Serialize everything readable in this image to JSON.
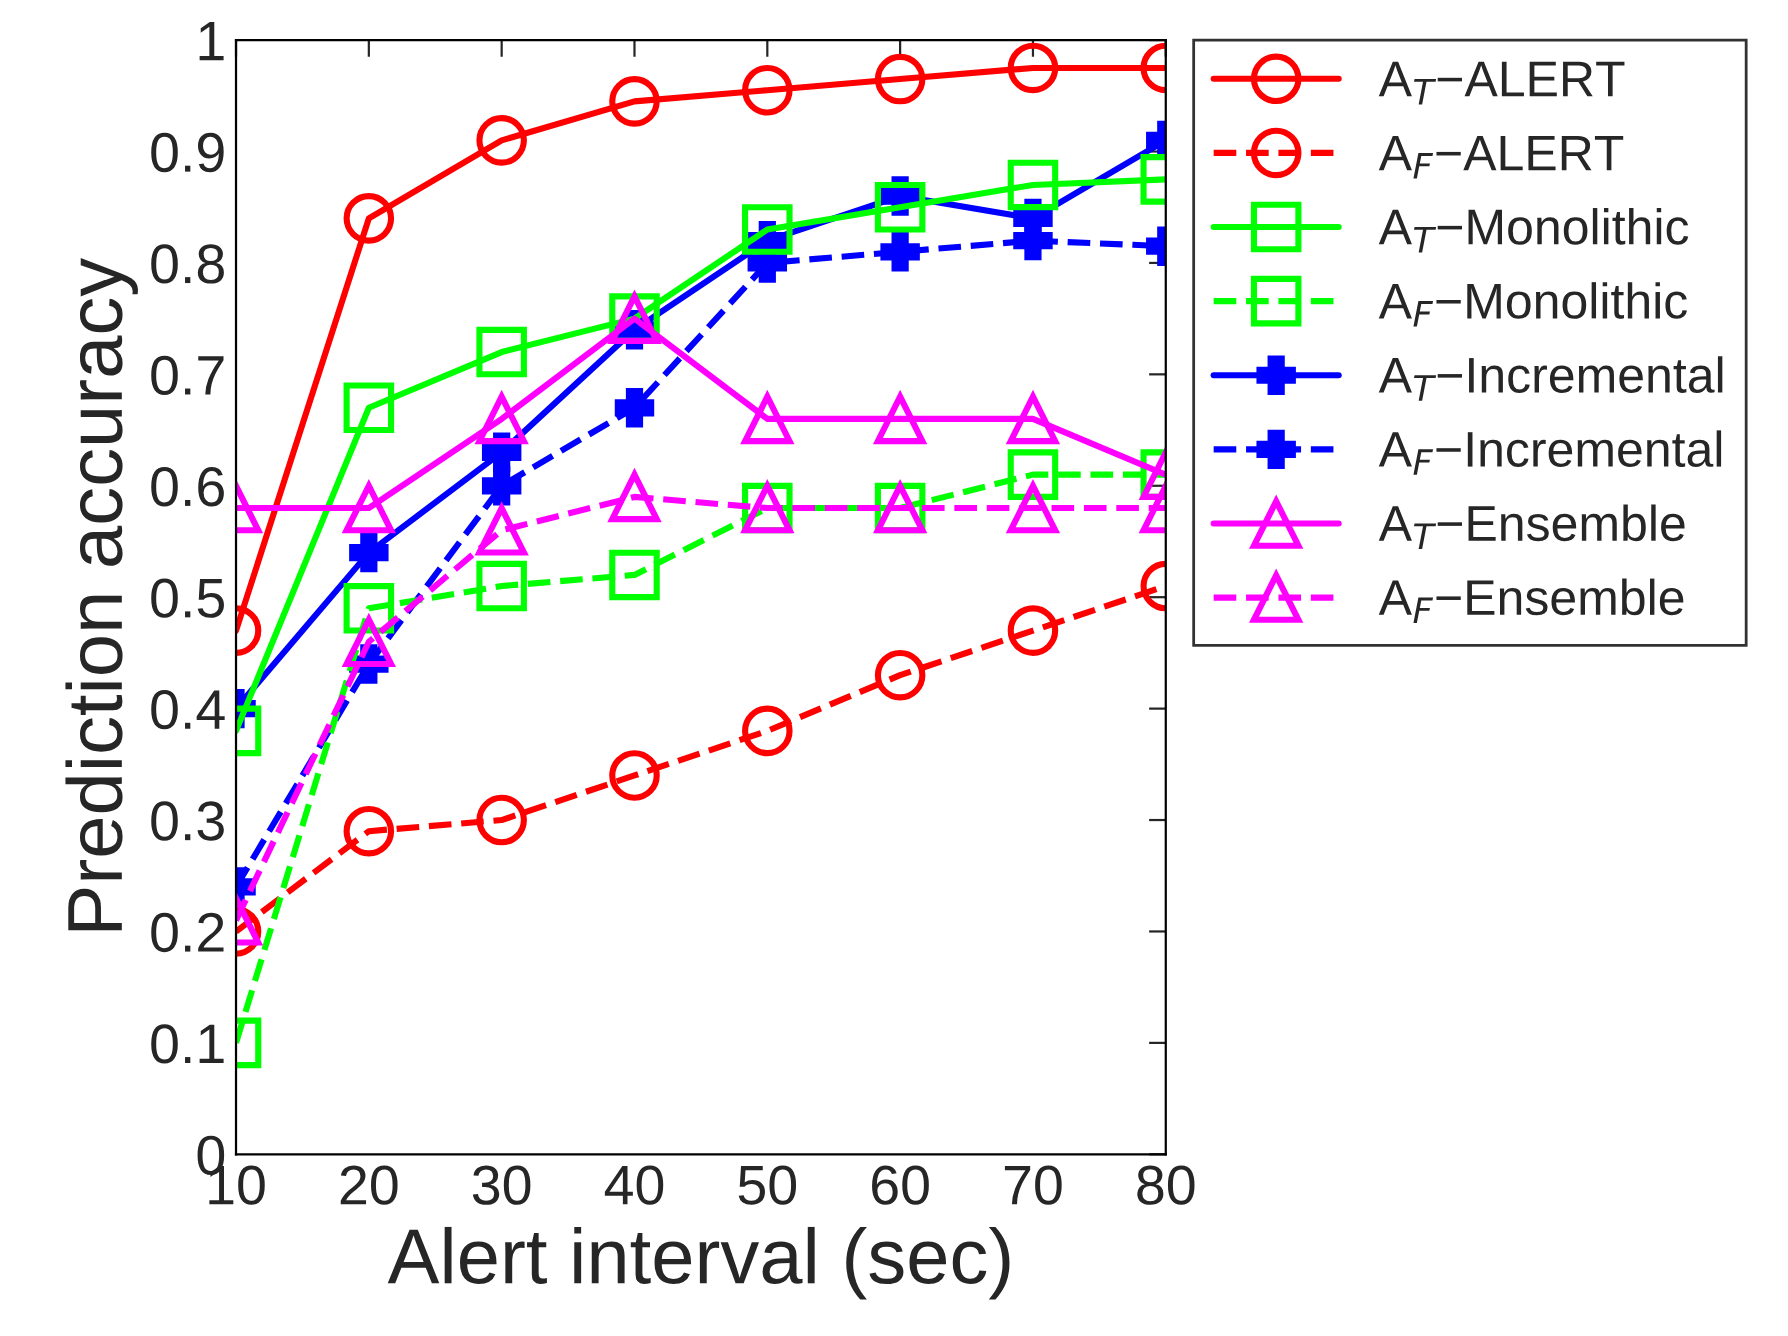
{
  "chart_data": {
    "type": "line",
    "xlabel": "Alert interval (sec)",
    "ylabel": "Prediction accuracy",
    "x": [
      10,
      20,
      30,
      40,
      50,
      60,
      70,
      80
    ],
    "xlim": [
      10,
      80
    ],
    "xticks": [
      10,
      20,
      30,
      40,
      50,
      60,
      70,
      80
    ],
    "ylim": [
      0,
      1
    ],
    "yticks": [
      0,
      0.1,
      0.2,
      0.3,
      0.4,
      0.5,
      0.6,
      0.7,
      0.8,
      0.9,
      1
    ],
    "grid": false,
    "legend": "top right",
    "series": [
      {
        "name": "A$_{T}$−ALERT",
        "color": "#ff0000",
        "marker": "circle",
        "line_style": "solid",
        "values": [
          0.47,
          0.84,
          0.91,
          0.945,
          0.955,
          0.965,
          0.975,
          0.975
        ]
      },
      {
        "name": "A$_{F}$−ALERT",
        "color": "#ff0000",
        "marker": "circle",
        "line_style": "dashed",
        "values": [
          0.2,
          0.29,
          0.3,
          0.34,
          0.38,
          0.43,
          0.47,
          0.51
        ]
      },
      {
        "name": "A$_{T}$−Monolithic",
        "color": "#00ff00",
        "marker": "square",
        "line_style": "solid",
        "values": [
          0.38,
          0.67,
          0.72,
          0.75,
          0.83,
          0.85,
          0.87,
          0.875
        ]
      },
      {
        "name": "A$_{F}$−Monolithic",
        "color": "#00ff00",
        "marker": "square",
        "line_style": "dashed",
        "values": [
          0.1,
          0.49,
          0.51,
          0.52,
          0.58,
          0.58,
          0.61,
          0.61
        ]
      },
      {
        "name": "A$_{T}$−Incremental",
        "color": "#0000ff",
        "marker": "cross",
        "line_style": "solid",
        "values": [
          0.4,
          0.54,
          0.63,
          0.74,
          0.82,
          0.86,
          0.84,
          0.91
        ]
      },
      {
        "name": "A$_{F}$−Incremental",
        "color": "#0000ff",
        "marker": "cross",
        "line_style": "dashed",
        "values": [
          0.24,
          0.44,
          0.6,
          0.67,
          0.8,
          0.81,
          0.82,
          0.815
        ]
      },
      {
        "name": "A$_{T}$−Ensemble",
        "color": "#ff00ff",
        "marker": "triangle",
        "line_style": "solid",
        "values": [
          0.58,
          0.58,
          0.66,
          0.75,
          0.66,
          0.66,
          0.66,
          0.61
        ]
      },
      {
        "name": "A$_{F}$−Ensemble",
        "color": "#ff00ff",
        "marker": "triangle",
        "line_style": "dashed",
        "values": [
          0.21,
          0.46,
          0.56,
          0.59,
          0.58,
          0.58,
          0.58,
          0.58
        ]
      }
    ]
  }
}
